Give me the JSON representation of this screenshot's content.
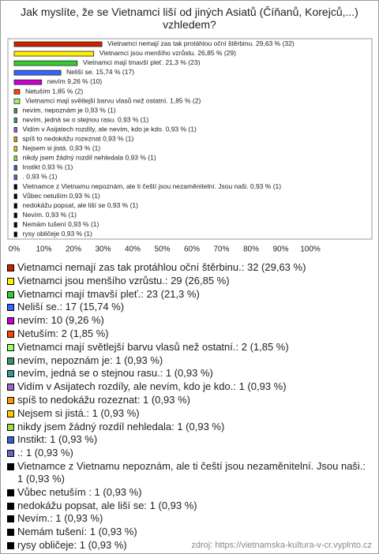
{
  "chart_data": {
    "type": "bar",
    "title": "Jak myslíte, že se Vietnamci liší od jiných Asiatů (Číňanů, Korejců,...) vzhledem?",
    "categories": [
      "Vietnamci nemají zas tak protáhlou oční štěrbinu.",
      "Vietnamci jsou menšího vzrůstu.",
      "Vietnamci mají tmavší pleť.",
      "Neliší se.",
      "nevím",
      "Netuším",
      "Vietnamci mají světlejší barvu vlasů než ostatní.",
      "nevím, nepoznám je",
      "nevím, jedná se o stejnou rasu.",
      "Vidím v Asijatech rozdíly, ale nevím, kdo je kdo.",
      "spíš to nedokážu rozeznat",
      "Nejsem si jistá.",
      "nikdy jsem žádný rozdíl nehledala",
      "Instikt",
      ".",
      "Vietnamce z Vietnamu nepoznám, ale ti čeští jsou nezaměnitelní. Jsou naši.",
      "Vůbec netuším ",
      "nedokážu popsat, ale liší se",
      "Nevím.",
      "Nemám tušení",
      "rysy obličeje"
    ],
    "values": [
      29.63,
      26.85,
      21.3,
      15.74,
      9.26,
      1.85,
      1.85,
      0.93,
      0.93,
      0.93,
      0.93,
      0.93,
      0.93,
      0.93,
      0.93,
      0.93,
      0.93,
      0.93,
      0.93,
      0.93,
      0.93
    ],
    "value_labels": [
      "29,63 % (32)",
      "26,85 % (29)",
      "21,3 % (23)",
      "15,74 % (17)",
      "9,26 % (10)",
      "1,85 % (2)",
      "1,85 % (2)",
      "0,93 % (1)",
      "0,93 % (1)",
      "0,93 % (1)",
      "0,93 % (1)",
      "0,93 % (1)",
      "0,93 % (1)",
      "0,93 % (1)",
      "0,93 % (1)",
      "0,93 % (1)",
      "0,93 % (1)",
      "0,93 % (1)",
      "0,93 % (1)",
      "0,93 % (1)",
      "0,93 % (1)"
    ],
    "legend_labels": [
      "Vietnamci nemají zas tak protáhlou oční štěrbinu.: 32 (29,63 %)",
      "Vietnamci jsou menšího vzrůstu.: 29 (26,85 %)",
      "Vietnamci mají tmavší pleť.: 23 (21,3 %)",
      "Neliší se.: 17 (15,74 %)",
      "nevím: 10 (9,26 %)",
      "Netuším: 2 (1,85 %)",
      "Vietnamci mají světlejší barvu vlasů než ostatní.: 2 (1,85 %)",
      "nevím, nepoznám je: 1 (0,93 %)",
      "nevím, jedná se o stejnou rasu.: 1 (0,93 %)",
      "Vidím v Asijatech rozdíly, ale nevím, kdo je kdo.: 1 (0,93 %)",
      "spíš to nedokážu rozeznat: 1 (0,93 %)",
      "Nejsem si jistá.: 1 (0,93 %)",
      "nikdy jsem žádný rozdíl nehledala: 1 (0,93 %)",
      "Instikt: 1 (0,93 %)",
      ".: 1 (0,93 %)",
      "Vietnamce z Vietnamu nepoznám, ale ti čeští jsou nezaměnitelní. Jsou naši.: 1 (0,93 %)",
      "Vůbec netuším : 1 (0,93 %)",
      "nedokážu popsat, ale liší se: 1 (0,93 %)",
      "Nevím.: 1 (0,93 %)",
      "Nemám tušení: 1 (0,93 %)",
      "rysy obličeje: 1 (0,93 %)"
    ],
    "colors": [
      "#cc2200",
      "#ffee00",
      "#33cc33",
      "#3366ff",
      "#cc00cc",
      "#ff4400",
      "#99ff66",
      "#339966",
      "#339999",
      "#9966cc",
      "#ff9900",
      "#ffcc00",
      "#99dd44",
      "#3366cc",
      "#6666cc",
      "#000000",
      "#000000",
      "#000000",
      "#000000",
      "#000000",
      "#000000"
    ],
    "xlim": [
      0,
      100
    ],
    "xticks": [
      {
        "value": 0,
        "label": "0%"
      },
      {
        "value": 10,
        "label": "10%"
      },
      {
        "value": 20,
        "label": "20%"
      },
      {
        "value": 30,
        "label": "30%"
      },
      {
        "value": 40,
        "label": "40%"
      },
      {
        "value": 50,
        "label": "50%"
      },
      {
        "value": 60,
        "label": "60%"
      },
      {
        "value": 70,
        "label": "70%"
      },
      {
        "value": 80,
        "label": "80%"
      },
      {
        "value": 90,
        "label": "90%"
      },
      {
        "value": 100,
        "label": "100%"
      }
    ],
    "grid": false,
    "source": "zdroj: https://vietnamska-kultura-v-cr.vyplnto.cz"
  }
}
